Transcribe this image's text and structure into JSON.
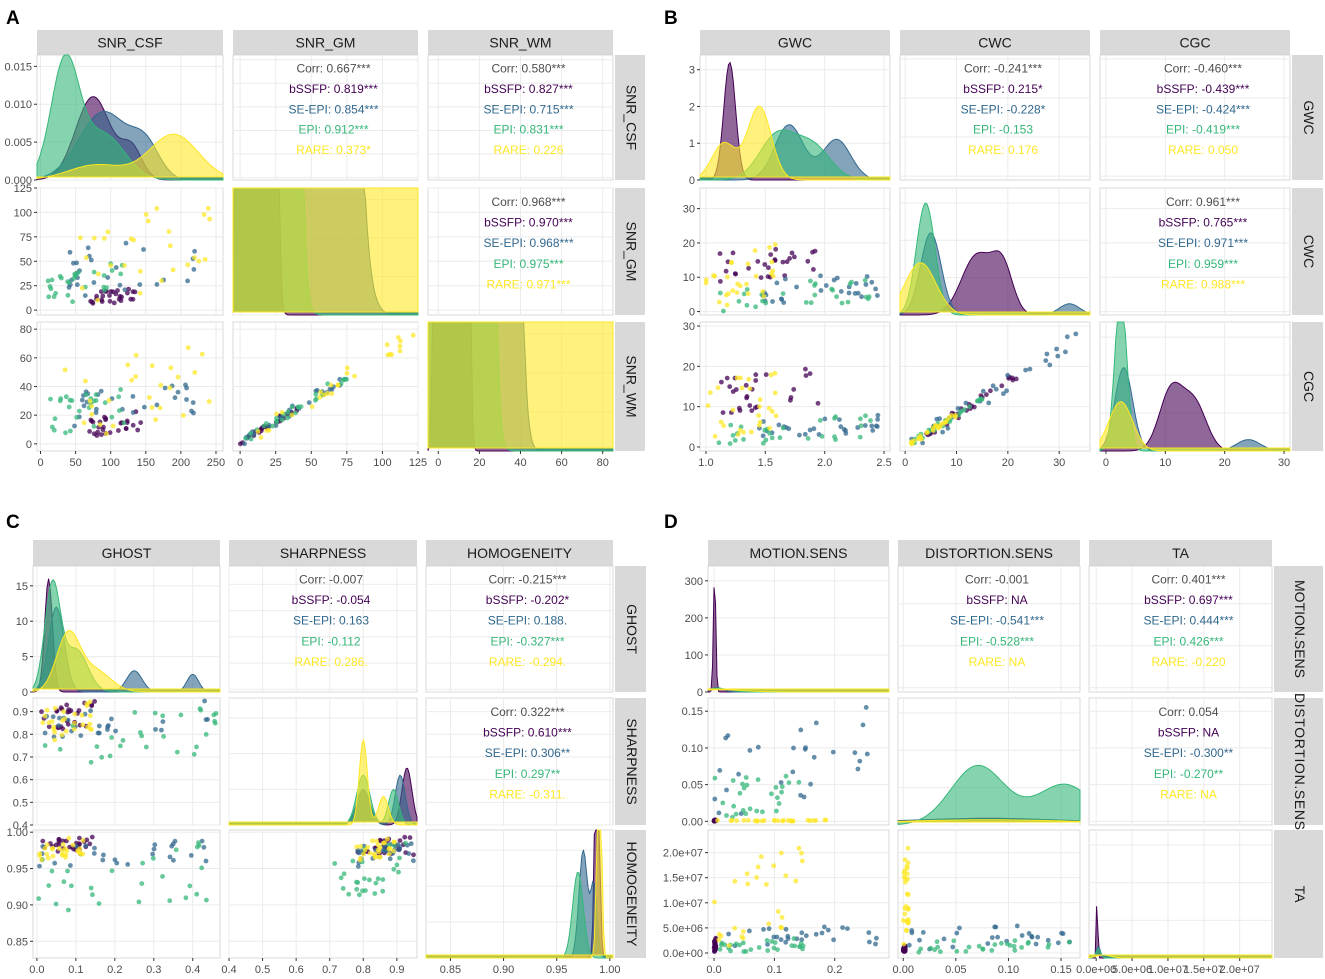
{
  "figure": {
    "group_colors": {
      "Corr": "#4d4d4d",
      "bSSFP": "#440154",
      "SE-EPI": "#31688e",
      "EPI": "#35b779",
      "RARE": "#fde725"
    },
    "correlation_groups": [
      "Corr",
      "bSSFP",
      "SE-EPI",
      "EPI",
      "RARE"
    ]
  },
  "chart_data": [
    {
      "type": "scatter",
      "panel": "A",
      "variables": [
        "SNR_CSF",
        "SNR_GM",
        "SNR_WM"
      ],
      "axis_ticks": [
        [
          "0",
          "50",
          "100",
          "150",
          "200",
          "250"
        ],
        [
          "0",
          "25",
          "50",
          "75",
          "100",
          "125"
        ],
        [
          "0",
          "20",
          "40",
          "60",
          "80"
        ]
      ],
      "density_y_ticks": [
        "0.000",
        "0.005",
        "0.010",
        "0.015"
      ],
      "axis_ranges": [
        [
          -5,
          260
        ],
        [
          -5,
          125
        ],
        [
          -5,
          85
        ]
      ],
      "density_ylim": [
        0,
        0.0165
      ],
      "correlations": [
        {
          "row": 0,
          "col": 1,
          "lines": [
            "Corr: 0.667***",
            "bSSFP: 0.819***",
            "SE-EPI: 0.854***",
            "EPI: 0.912***",
            "RARE: 0.373*"
          ]
        },
        {
          "row": 0,
          "col": 2,
          "lines": [
            "Corr: 0.580***",
            "bSSFP: 0.827***",
            "SE-EPI: 0.715***",
            "EPI: 0.831***",
            "RARE: 0.226"
          ]
        },
        {
          "row": 1,
          "col": 2,
          "lines": [
            "Corr: 0.968***",
            "bSSFP: 0.970***",
            "SE-EPI: 0.968***",
            "EPI: 0.975***",
            "RARE: 0.971***"
          ]
        }
      ]
    },
    {
      "type": "scatter",
      "panel": "B",
      "variables": [
        "GWC",
        "CWC",
        "CGC"
      ],
      "axis_ticks": [
        [
          "1.0",
          "1.5",
          "2.0",
          "2.5"
        ],
        [
          "0",
          "10",
          "20",
          "30"
        ],
        [
          "0",
          "10",
          "20",
          "30"
        ]
      ],
      "density_y_ticks": [
        "0",
        "1",
        "2",
        "3"
      ],
      "axis_ranges": [
        [
          0.95,
          2.55
        ],
        [
          -1,
          36
        ],
        [
          -1,
          31
        ]
      ],
      "density_ylim": [
        0,
        3.4
      ],
      "correlations": [
        {
          "row": 0,
          "col": 1,
          "lines": [
            "Corr: -0.241***",
            "bSSFP: 0.215*",
            "SE-EPI: -0.228*",
            "EPI: -0.153",
            "RARE: 0.176"
          ]
        },
        {
          "row": 0,
          "col": 2,
          "lines": [
            "Corr: -0.460***",
            "bSSFP: -0.439***",
            "SE-EPI: -0.424***",
            "EPI: -0.419***",
            "RARE: 0.050"
          ]
        },
        {
          "row": 1,
          "col": 2,
          "lines": [
            "Corr: 0.961***",
            "bSSFP: 0.765***",
            "SE-EPI: 0.971***",
            "EPI: 0.959***",
            "RARE: 0.988***"
          ]
        }
      ]
    },
    {
      "type": "scatter",
      "panel": "C",
      "variables": [
        "GHOST",
        "SHARPNESS",
        "HOMOGENEITY"
      ],
      "axis_ticks": [
        [
          "0.0",
          "0.1",
          "0.2",
          "0.3",
          "0.4"
        ],
        [
          "0.4",
          "0.5",
          "0.6",
          "0.7",
          "0.8",
          "0.9"
        ],
        [
          "0.85",
          "0.90",
          "0.95",
          "1.00"
        ]
      ],
      "density_y_ticks": [
        "0",
        "5",
        "10",
        "15"
      ],
      "axis_ranges": [
        [
          -0.01,
          0.47
        ],
        [
          0.4,
          0.96
        ],
        [
          0.827,
          1.003
        ]
      ],
      "density_ylim": [
        0,
        17.8
      ],
      "correlations": [
        {
          "row": 0,
          "col": 1,
          "lines": [
            "Corr: -0.007",
            "bSSFP: -0.054",
            "SE-EPI: 0.163",
            "EPI: -0.112",
            "RARE: 0.286."
          ]
        },
        {
          "row": 0,
          "col": 2,
          "lines": [
            "Corr: -0.215***",
            "bSSFP: -0.202*",
            "SE-EPI: 0.188.",
            "EPI: -0.327***",
            "RARE: -0.294."
          ]
        },
        {
          "row": 1,
          "col": 2,
          "lines": [
            "Corr: 0.322***",
            "bSSFP: 0.610***",
            "SE-EPI: 0.306**",
            "EPI: 0.297**",
            "RARE: -0.311."
          ]
        }
      ]
    },
    {
      "type": "scatter",
      "panel": "D",
      "variables": [
        "MOTION.SENS",
        "DISTORTION.SENS",
        "TA"
      ],
      "variable_labels_right": [
        "MOTION.SENS",
        "DISTORTION.SENS",
        "TA"
      ],
      "axis_ticks": [
        [
          "0.0",
          "0.1",
          "0.2"
        ],
        [
          "0.00",
          "0.05",
          "0.10",
          "0.15"
        ],
        [
          "0.0e+00",
          "5.0e+06",
          "1.0e+07",
          "1.5e+07",
          "2.0e+07"
        ]
      ],
      "density_y_ticks": [
        "0",
        "100",
        "200",
        "300"
      ],
      "axis_ranges": [
        [
          -0.01,
          0.29
        ],
        [
          -0.005,
          0.168
        ],
        [
          -1000000,
          24500000
        ]
      ],
      "density_ylim": [
        0,
        340
      ],
      "correlations": [
        {
          "row": 0,
          "col": 1,
          "lines": [
            "Corr: -0.001",
            "bSSFP:   NA",
            "SE-EPI: -0.541***",
            "EPI: -0.528***",
            "RARE:   NA"
          ]
        },
        {
          "row": 0,
          "col": 2,
          "lines": [
            "Corr: 0.401***",
            "bSSFP: 0.697***",
            "SE-EPI: 0.444***",
            "EPI: 0.426***",
            "RARE: -0.220"
          ]
        },
        {
          "row": 1,
          "col": 2,
          "lines": [
            "Corr: 0.054",
            "bSSFP:   NA",
            "SE-EPI: -0.300**",
            "EPI: -0.270**",
            "RARE:   NA"
          ]
        }
      ]
    }
  ]
}
